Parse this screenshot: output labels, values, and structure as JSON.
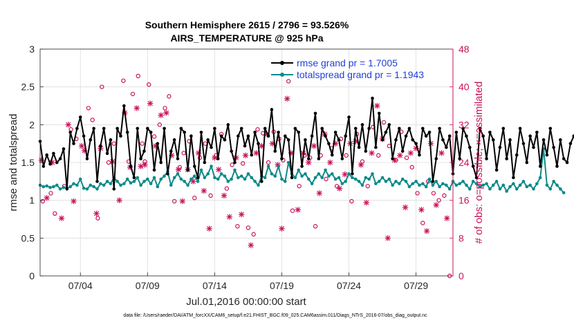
{
  "chart_data": {
    "type": "line",
    "title": "Southern Hemisphere 2615 / 2796 = 93.526%",
    "subtitle": "AIRS_TEMPERATURE @ 925 hPa",
    "xlabel": "Jul.01,2016 00:00:00 start",
    "ylabel": "rmse and totalspread",
    "y2label": "# of obs: o=possible; ×=assimilated",
    "x_tick_labels": [
      "07/04",
      "07/09",
      "07/14",
      "07/19",
      "07/24",
      "07/29"
    ],
    "x_tick_days": [
      4,
      9,
      14,
      19,
      24,
      29
    ],
    "xlim": [
      1,
      31.75
    ],
    "ylim": [
      0,
      3
    ],
    "y_ticks": [
      "0",
      "0.5",
      "1",
      "1.5",
      "2",
      "2.5",
      "3"
    ],
    "y2lim": [
      0,
      48
    ],
    "y2_ticks": [
      "0",
      "8",
      "16",
      "24",
      "32",
      "40",
      "48"
    ],
    "grid": true,
    "legend_position": "top-right",
    "series": [
      {
        "name": "rmse grand pr = 1.7005",
        "color": "#000000",
        "axis": "left",
        "values": [
          1.78,
          1.45,
          1.6,
          1.48,
          1.62,
          1.5,
          1.55,
          1.68,
          1.15,
          1.9,
          1.75,
          1.95,
          2.1,
          1.85,
          1.55,
          1.8,
          1.95,
          1.25,
          1.72,
          1.95,
          1.62,
          1.8,
          1.15,
          1.95,
          1.85,
          2.25,
          1.9,
          1.45,
          1.3,
          1.95,
          1.55,
          1.65,
          1.95,
          1.9,
          1.4,
          1.75,
          1.5,
          1.95,
          1.35,
          1.65,
          1.8,
          1.55,
          1.95,
          1.9,
          1.4,
          1.85,
          1.45,
          1.3,
          1.9,
          1.5,
          1.8,
          1.7,
          1.95,
          1.55,
          1.85,
          1.8,
          2.0,
          1.65,
          1.5,
          1.85,
          1.95,
          1.72,
          1.85,
          1.6,
          1.9,
          1.75,
          1.25,
          1.95,
          1.85,
          2.2,
          1.65,
          1.9,
          1.55,
          1.85,
          1.8,
          1.3,
          1.95,
          1.9,
          1.45,
          1.8,
          1.55,
          1.85,
          2.15,
          1.55,
          1.95,
          1.85,
          1.75,
          1.6,
          1.9,
          1.8,
          1.55,
          1.85,
          2.1,
          1.35,
          1.95,
          1.7,
          2.0,
          1.65,
          1.95,
          2.35,
          1.7,
          2.15,
          1.8,
          1.9,
          2.0,
          1.55,
          1.8,
          1.95,
          1.65,
          1.85,
          1.95,
          1.8,
          1.75,
          1.6,
          1.95,
          1.85,
          1.9,
          1.25,
          1.55,
          1.95,
          1.8,
          1.7,
          1.85,
          1.35,
          1.9,
          1.55,
          1.95,
          1.85,
          1.7,
          1.45,
          1.3,
          1.95,
          1.85,
          1.55,
          1.9,
          1.8,
          1.4,
          1.7,
          1.95,
          1.55,
          1.8,
          1.3,
          1.6,
          1.95,
          1.75,
          1.5,
          1.85,
          1.7,
          1.9,
          1.45,
          1.8,
          1.6,
          1.95,
          1.7,
          1.45,
          1.8,
          1.55,
          1.5,
          1.75,
          1.85
        ]
      },
      {
        "name": "totalspread grand pr = 1.1943",
        "color": "#0e8a8a",
        "axis": "left",
        "values": [
          1.2,
          1.18,
          1.19,
          1.17,
          1.18,
          1.2,
          1.15,
          1.17,
          1.16,
          1.18,
          1.22,
          1.2,
          1.28,
          1.16,
          1.15,
          1.2,
          1.18,
          1.15,
          1.22,
          1.2,
          1.25,
          1.22,
          1.3,
          1.25,
          1.2,
          1.22,
          1.28,
          1.23,
          1.25,
          1.3,
          1.2,
          1.25,
          1.28,
          1.22,
          1.3,
          1.18,
          1.28,
          1.32,
          1.38,
          1.2,
          1.3,
          1.35,
          1.28,
          1.25,
          1.2,
          1.28,
          1.32,
          1.25,
          1.4,
          1.3,
          1.35,
          1.45,
          1.3,
          1.28,
          1.35,
          1.32,
          1.25,
          1.28,
          1.4,
          1.3,
          1.32,
          1.28,
          1.35,
          1.3,
          1.25,
          1.2,
          1.32,
          1.3,
          1.45,
          1.35,
          1.32,
          1.45,
          1.28,
          1.25,
          1.5,
          1.35,
          1.3,
          1.4,
          1.32,
          1.35,
          1.28,
          1.22,
          1.3,
          1.35,
          1.3,
          1.4,
          1.32,
          1.35,
          1.28,
          1.3,
          1.22,
          1.25,
          1.35,
          1.3,
          1.28,
          1.25,
          1.2,
          1.3,
          1.28,
          1.35,
          1.22,
          1.25,
          1.3,
          1.25,
          1.28,
          1.2,
          1.25,
          1.22,
          1.28,
          1.25,
          1.18,
          1.22,
          1.25,
          1.2,
          1.22,
          1.18,
          1.28,
          1.2,
          1.25,
          1.18,
          1.22,
          1.2,
          1.15,
          1.25,
          1.2,
          1.22,
          1.25,
          1.2,
          1.15,
          1.25,
          1.22,
          1.18,
          1.2,
          1.22,
          1.15,
          1.2,
          1.25,
          1.15,
          1.2,
          1.12,
          1.18,
          1.22,
          1.15,
          1.2,
          1.25,
          1.18,
          1.2,
          1.15,
          1.22,
          1.3,
          1.68,
          1.2,
          1.15,
          1.25,
          1.2,
          1.15,
          1.1
        ]
      },
      {
        "name": "obs possible",
        "color": "#c8125a",
        "axis": "right",
        "marker": "o",
        "points": [
          [
            1.2,
            15.8
          ],
          [
            1.8,
            17.5
          ],
          [
            2.1,
            13.2
          ],
          [
            2.8,
            19
          ],
          [
            3.3,
            31
          ],
          [
            3.7,
            29
          ],
          [
            4.6,
            35.5
          ],
          [
            4.9,
            33
          ],
          [
            5.3,
            12.2
          ],
          [
            5.6,
            40
          ],
          [
            6.1,
            24
          ],
          [
            6.5,
            28
          ],
          [
            7.2,
            41.3
          ],
          [
            7.6,
            24.2
          ],
          [
            7.9,
            38.5
          ],
          [
            8.3,
            42.3
          ],
          [
            8.6,
            28
          ],
          [
            8.8,
            24.2
          ],
          [
            9.1,
            40.5
          ],
          [
            9.5,
            29.5
          ],
          [
            9.9,
            32
          ],
          [
            10.3,
            35.5
          ],
          [
            10.6,
            38
          ],
          [
            11,
            15.8
          ],
          [
            11.4,
            23
          ],
          [
            11.7,
            26
          ],
          [
            12.1,
            28.5
          ],
          [
            12.5,
            16.5
          ],
          [
            12.9,
            25
          ],
          [
            13.3,
            28
          ],
          [
            13.7,
            17
          ],
          [
            14.1,
            25.5
          ],
          [
            14.5,
            30
          ],
          [
            14.9,
            18.5
          ],
          [
            15.3,
            23.5
          ],
          [
            15.7,
            10.5
          ],
          [
            16.1,
            23.8
          ],
          [
            16.5,
            10.2
          ],
          [
            16.9,
            8.8
          ],
          [
            17.2,
            31
          ],
          [
            17.6,
            30.2
          ],
          [
            18,
            24
          ],
          [
            18.4,
            30.5
          ],
          [
            18.8,
            29
          ],
          [
            19.1,
            24.5
          ],
          [
            19.5,
            41.2
          ],
          [
            19.8,
            13.8
          ],
          [
            20.3,
            19
          ],
          [
            20.7,
            25.5
          ],
          [
            21.1,
            25
          ],
          [
            21.5,
            10.5
          ],
          [
            21.9,
            25.5
          ],
          [
            22.3,
            20.5
          ],
          [
            22.7,
            27
          ],
          [
            23.1,
            19
          ],
          [
            23.4,
            29
          ],
          [
            23.8,
            25.5
          ],
          [
            24.2,
            15.8
          ],
          [
            24.6,
            30
          ],
          [
            25,
            24.2
          ],
          [
            25.4,
            19
          ],
          [
            25.8,
            31.5
          ],
          [
            26.2,
            25.5
          ],
          [
            26.6,
            32.5
          ],
          [
            27,
            27.5
          ],
          [
            27.5,
            24.5
          ],
          [
            27.9,
            30.5
          ],
          [
            28.3,
            25
          ],
          [
            28.7,
            23
          ],
          [
            29.1,
            17.5
          ],
          [
            29.5,
            11.2
          ],
          [
            29.9,
            20
          ],
          [
            30.3,
            17.5
          ],
          [
            30.7,
            16
          ],
          [
            31.1,
            17
          ],
          [
            31.5,
            0
          ]
        ]
      },
      {
        "name": "obs assimilated",
        "color": "#c8125a",
        "axis": "right",
        "marker": "x",
        "points": [
          [
            1.1,
            24.5
          ],
          [
            1.5,
            16.5
          ],
          [
            1.9,
            24
          ],
          [
            2.6,
            12.2
          ],
          [
            3.1,
            32
          ],
          [
            3.5,
            15.8
          ],
          [
            4.1,
            27.5
          ],
          [
            4.3,
            26.5
          ],
          [
            5.2,
            13.2
          ],
          [
            5.5,
            27
          ],
          [
            6.4,
            24.2
          ],
          [
            6.9,
            16
          ],
          [
            7.3,
            34.5
          ],
          [
            7.7,
            23
          ],
          [
            8.2,
            35.5
          ],
          [
            8.5,
            23.2
          ],
          [
            8.8,
            23.5
          ],
          [
            9.2,
            36.5
          ],
          [
            9.6,
            27.5
          ],
          [
            10,
            34
          ],
          [
            10.4,
            34.5
          ],
          [
            10.8,
            25.5
          ],
          [
            11.3,
            22.5
          ],
          [
            11.6,
            15.8
          ],
          [
            12,
            22.5
          ],
          [
            12.4,
            20
          ],
          [
            12.8,
            26
          ],
          [
            13.2,
            18
          ],
          [
            13.6,
            10
          ],
          [
            14,
            25
          ],
          [
            14.3,
            22.5
          ],
          [
            14.7,
            17
          ],
          [
            15.1,
            12.5
          ],
          [
            15.6,
            25
          ],
          [
            16,
            13
          ],
          [
            16.3,
            25.5
          ],
          [
            16.7,
            6.5
          ],
          [
            17.1,
            26
          ],
          [
            17.5,
            27.5
          ],
          [
            17.9,
            30
          ],
          [
            18.3,
            28
          ],
          [
            18.7,
            23.5
          ],
          [
            19,
            10
          ],
          [
            19.4,
            37.5
          ],
          [
            19.7,
            26
          ],
          [
            20.2,
            14
          ],
          [
            20.6,
            26
          ],
          [
            21,
            24
          ],
          [
            21.4,
            27.5
          ],
          [
            21.8,
            17.5
          ],
          [
            22.2,
            30
          ],
          [
            22.6,
            24
          ],
          [
            23,
            28
          ],
          [
            23.3,
            18.5
          ],
          [
            23.7,
            21.5
          ],
          [
            24.1,
            28
          ],
          [
            24.5,
            28.5
          ],
          [
            24.9,
            23.5
          ],
          [
            25.3,
            15.5
          ],
          [
            25.7,
            26
          ],
          [
            26.1,
            36
          ],
          [
            26.5,
            29
          ],
          [
            26.9,
            8
          ],
          [
            27.4,
            24.5
          ],
          [
            27.8,
            25.5
          ],
          [
            28.2,
            14.5
          ],
          [
            28.6,
            26
          ],
          [
            29,
            27
          ],
          [
            29.4,
            14
          ],
          [
            29.8,
            9.5
          ],
          [
            30.1,
            28
          ],
          [
            30.5,
            15
          ],
          [
            30.9,
            26
          ],
          [
            31.3,
            12.2
          ]
        ]
      }
    ]
  },
  "footer": "data file: /Users/raeder/DAI/ATM_forcXX/CAM6_setup/f.e21.FHIST_BGC.f09_025.CAM6assim.011/Diags_NTrS_2016-07/obs_diag_output.nc"
}
